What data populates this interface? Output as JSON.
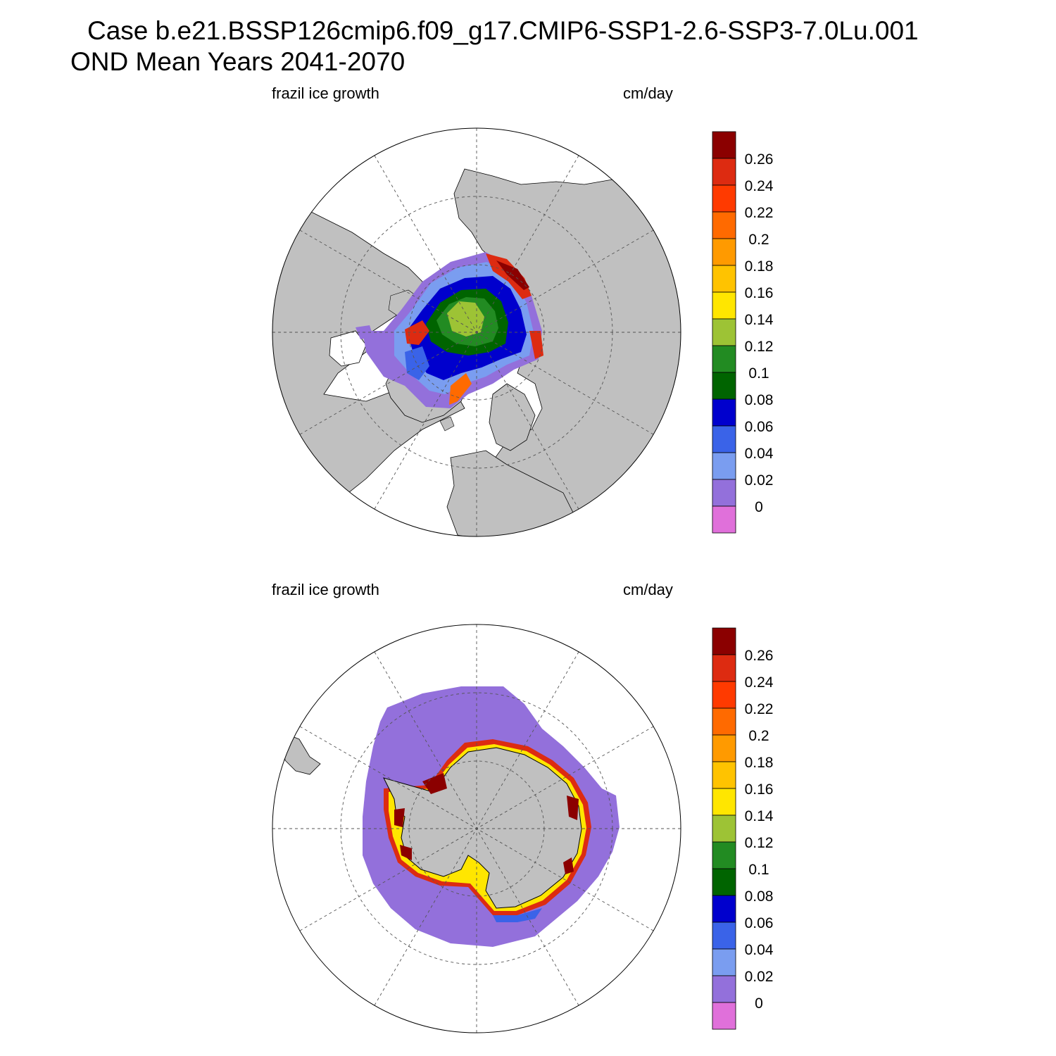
{
  "title": {
    "line1": "Case b.e21.BSSP126cmip6.f09_g17.CMIP6-SSP1-2.6-SSP3-7.0Lu.001",
    "line2": "OND Mean   Years 2041-2070"
  },
  "panels": [
    {
      "hemisphere": "Northern",
      "left_label": "frazil ice growth",
      "right_label": "cm/day"
    },
    {
      "hemisphere": "Southern",
      "left_label": "frazil ice growth",
      "right_label": "cm/day"
    }
  ],
  "colorbar": {
    "units": "cm/day",
    "labels": [
      "0.26",
      "0.24",
      "0.22",
      "0.2",
      "0.18",
      "0.16",
      "0.14",
      "0.12",
      "0.1",
      "0.08",
      "0.06",
      "0.04",
      "0.02",
      "0"
    ],
    "colors_top_to_bottom": [
      "#8b0000",
      "#dd2b11",
      "#ff3a00",
      "#ff6a00",
      "#ff9a00",
      "#ffc300",
      "#ffe600",
      "#9dc335",
      "#228b22",
      "#006400",
      "#0000cd",
      "#3a63e8",
      "#7a9df0",
      "#9370db",
      "#e070da"
    ]
  },
  "map_colors": {
    "land": "#c0c0c0",
    "ocean": "#ffffff",
    "grid": "#555555"
  }
}
